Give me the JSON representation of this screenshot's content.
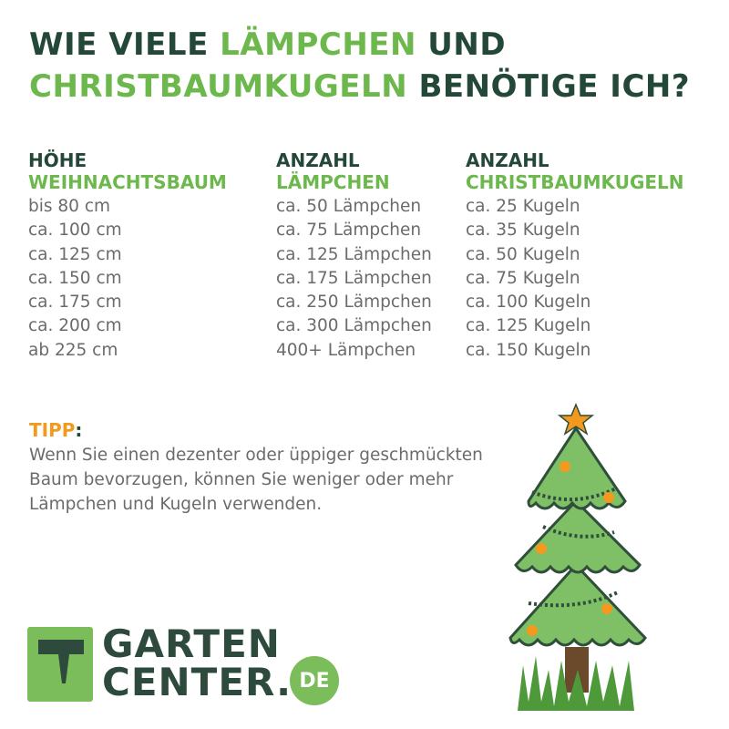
{
  "title": {
    "line1_dark": "WIE VIELE ",
    "line1_green": "LÄMPCHEN",
    "line1_dark2": " UND",
    "line2_green": "CHRISTBAUMKUGELN",
    "line2_dark": " BENÖTIGE ICH?"
  },
  "columns": [
    {
      "h1": "HÖHE",
      "h2": "WEIHNACHTSBAUM",
      "rows": [
        "bis 80 cm",
        "ca. 100 cm",
        "ca. 125 cm",
        "ca. 150 cm",
        "ca. 175 cm",
        "ca. 200 cm",
        "ab 225 cm"
      ]
    },
    {
      "h1": "ANZAHL",
      "h2": "LÄMPCHEN",
      "rows": [
        "ca. 50 Lämpchen",
        "ca. 75 Lämpchen",
        "ca. 125 Lämpchen",
        "ca. 175 Lämpchen",
        "ca. 250 Lämpchen",
        "ca. 300 Lämpchen",
        "400+ Lämpchen"
      ]
    },
    {
      "h1": "ANZAHL",
      "h2": "CHRISTBAUMKUGELN",
      "rows": [
        "ca. 25 Kugeln",
        "ca. 35 Kugeln",
        "ca. 50 Kugeln",
        "ca. 75 Kugeln",
        "ca. 100 Kugeln",
        "ca. 125 Kugeln",
        "ca. 150 Kugeln"
      ]
    }
  ],
  "tip": {
    "label": "TIPP",
    "colon": ":",
    "text": "Wenn Sie einen dezenter oder üppiger geschmückten Baum bevorzugen, können Sie weniger oder mehr Lämpchen und Kugeln verwenden."
  },
  "logo": {
    "line1": "GARTEN",
    "line2": "CENTER.",
    "badge": "DE"
  },
  "colors": {
    "dark": "#234838",
    "green": "#6cb84d",
    "orange": "#f39a1e",
    "text": "#6b6b6b"
  },
  "icons": {
    "tree": "christmas-tree-illustration",
    "logo": "t-logo-icon"
  }
}
